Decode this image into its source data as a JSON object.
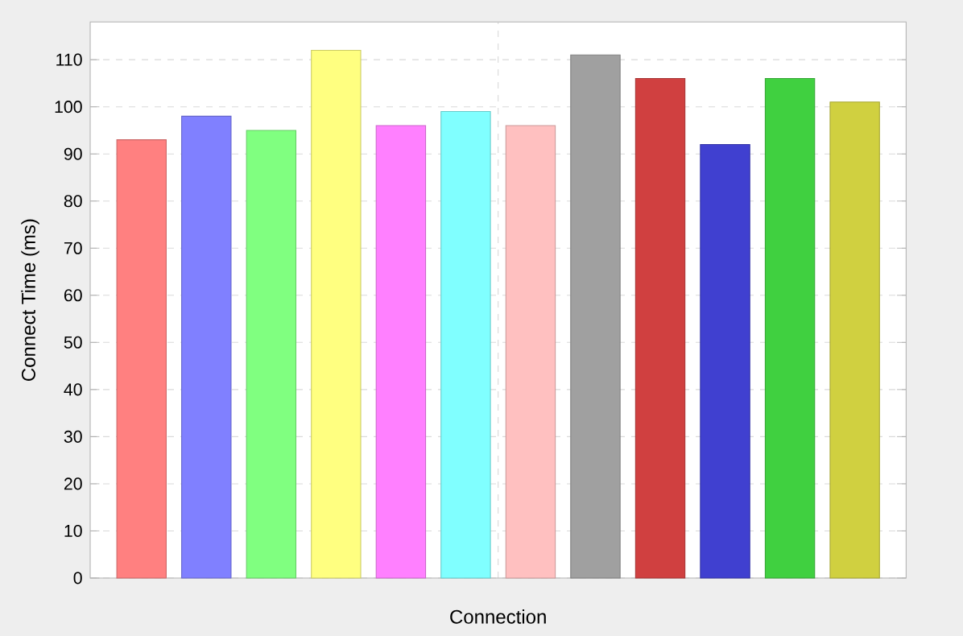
{
  "chart_data": {
    "type": "bar",
    "xlabel": "Connection",
    "ylabel": "Connect Time (ms)",
    "categories": [
      null
    ],
    "series": [
      {
        "color": "#ff8080",
        "values": [
          93
        ]
      },
      {
        "color": "#8080ff",
        "values": [
          98
        ]
      },
      {
        "color": "#80ff80",
        "values": [
          95
        ]
      },
      {
        "color": "#ffff80",
        "values": [
          112
        ]
      },
      {
        "color": "#ff80ff",
        "values": [
          96
        ]
      },
      {
        "color": "#80ffff",
        "values": [
          99
        ]
      },
      {
        "color": "#ffc0c0",
        "values": [
          96
        ]
      },
      {
        "color": "#a0a0a0",
        "values": [
          111
        ]
      },
      {
        "color": "#d04040",
        "values": [
          106
        ]
      },
      {
        "color": "#4040d0",
        "values": [
          92
        ]
      },
      {
        "color": "#40d040",
        "values": [
          106
        ]
      },
      {
        "color": "#d0d040",
        "values": [
          101
        ]
      }
    ],
    "ylim": [
      0,
      118
    ],
    "yticks": [
      0,
      10,
      20,
      30,
      40,
      50,
      60,
      70,
      80,
      90,
      100,
      110
    ],
    "grid": true
  }
}
